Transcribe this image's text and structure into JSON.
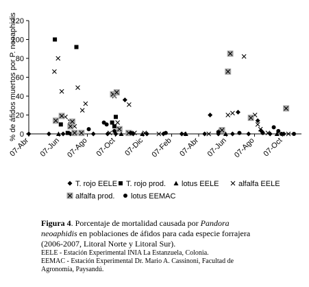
{
  "chart_data": {
    "type": "scatter",
    "ylabel": "% de áfidos muertos por P. neoaphidis",
    "ylim": [
      0,
      120
    ],
    "yticks": [
      0,
      20,
      40,
      60,
      80,
      100,
      120
    ],
    "xlim": [
      "2006-04-01",
      "2007-11-10"
    ],
    "xtick_labels": [
      {
        "date": "2006-04-01",
        "label": "07-Abr"
      },
      {
        "date": "2006-06-07",
        "label": "07-Jun"
      },
      {
        "date": "2006-08-07",
        "label": "07-Ago"
      },
      {
        "date": "2006-10-07",
        "label": "07-Oct"
      },
      {
        "date": "2006-12-07",
        "label": "07-Dic"
      },
      {
        "date": "2007-02-07",
        "label": "07-Feb"
      },
      {
        "date": "2007-04-07",
        "label": "07-Abr"
      },
      {
        "date": "2007-06-07",
        "label": "07-Jun"
      },
      {
        "date": "2007-08-07",
        "label": "07-Ago"
      },
      {
        "date": "2007-10-07",
        "label": "07-Oct"
      }
    ],
    "grid": false,
    "legend_placement": "bottom",
    "series": [
      {
        "name": "T. rojo EELE",
        "marker": "diamond",
        "color": "#000000",
        "points": [
          [
            "2006-04-01",
            0
          ],
          [
            "2006-05-15",
            0
          ],
          [
            "2006-06-15",
            0
          ],
          [
            "2006-07-01",
            0
          ],
          [
            "2006-08-20",
            0
          ],
          [
            "2006-09-20",
            0
          ],
          [
            "2006-10-08",
            0
          ],
          [
            "2006-10-28",
            36
          ],
          [
            "2006-11-15",
            0
          ],
          [
            "2006-12-15",
            0
          ],
          [
            "2007-01-20",
            0
          ],
          [
            "2007-03-01",
            0
          ],
          [
            "2007-04-20",
            0
          ],
          [
            "2007-05-02",
            20
          ],
          [
            "2007-05-20",
            0
          ],
          [
            "2007-06-20",
            0
          ],
          [
            "2007-07-02",
            23
          ],
          [
            "2007-07-25",
            0
          ],
          [
            "2007-08-14",
            14
          ],
          [
            "2007-08-22",
            3
          ],
          [
            "2007-09-10",
            0
          ],
          [
            "2007-10-10",
            0
          ]
        ]
      },
      {
        "name": "T. rojo prod.",
        "marker": "square",
        "color": "#000000",
        "points": [
          [
            "2006-05-28",
            100
          ],
          [
            "2006-06-10",
            10
          ],
          [
            "2006-06-25",
            1
          ],
          [
            "2006-07-14",
            92
          ],
          [
            "2006-09-30",
            12
          ],
          [
            "2006-10-05",
            8
          ],
          [
            "2006-10-08",
            18
          ]
        ]
      },
      {
        "name": "lotus EELE",
        "marker": "triangle",
        "color": "#000000",
        "points": [
          [
            "2006-06-05",
            0
          ],
          [
            "2006-07-25",
            0
          ],
          [
            "2006-10-20",
            0
          ],
          [
            "2006-12-05",
            0
          ],
          [
            "2007-03-10",
            0
          ],
          [
            "2007-06-05",
            0
          ],
          [
            "2007-09-25",
            0
          ]
        ]
      },
      {
        "name": "alfalfa EELE",
        "marker": "x",
        "color": "#000000",
        "points": [
          [
            "2006-05-27",
            66
          ],
          [
            "2006-06-04",
            80
          ],
          [
            "2006-06-12",
            45
          ],
          [
            "2006-06-20",
            18
          ],
          [
            "2006-06-30",
            13
          ],
          [
            "2006-07-10",
            8
          ],
          [
            "2006-07-17",
            49
          ],
          [
            "2006-07-27",
            25
          ],
          [
            "2006-08-03",
            32
          ],
          [
            "2006-09-25",
            1
          ],
          [
            "2006-10-05",
            40
          ],
          [
            "2006-10-12",
            12
          ],
          [
            "2006-11-06",
            31
          ],
          [
            "2006-11-18",
            1
          ],
          [
            "2006-12-10",
            1
          ],
          [
            "2007-01-10",
            0
          ],
          [
            "2007-03-05",
            0
          ],
          [
            "2007-04-29",
            0
          ],
          [
            "2007-05-25",
            3
          ],
          [
            "2007-06-10",
            20
          ],
          [
            "2007-06-20",
            22
          ],
          [
            "2007-07-15",
            82
          ],
          [
            "2007-08-08",
            20
          ],
          [
            "2007-08-14",
            10
          ],
          [
            "2007-08-20",
            5
          ],
          [
            "2007-09-05",
            1
          ],
          [
            "2007-10-20",
            0
          ]
        ]
      },
      {
        "name": "alfalfa prod.",
        "marker": "xbox",
        "color": "#000000",
        "points": [
          [
            "2006-05-30",
            14
          ],
          [
            "2006-06-12",
            19
          ],
          [
            "2006-07-01",
            8
          ],
          [
            "2006-07-05",
            13
          ],
          [
            "2006-07-10",
            1
          ],
          [
            "2006-07-25",
            1
          ],
          [
            "2006-10-02",
            42
          ],
          [
            "2006-10-10",
            44
          ],
          [
            "2006-10-16",
            5
          ],
          [
            "2006-11-05",
            1
          ],
          [
            "2007-05-28",
            4
          ],
          [
            "2007-06-10",
            66
          ],
          [
            "2007-06-15",
            85
          ],
          [
            "2007-07-30",
            17
          ],
          [
            "2007-10-15",
            27
          ]
        ]
      },
      {
        "name": "lotus EEMAC",
        "marker": "circle",
        "color": "#000000",
        "points": [
          [
            "2006-08-10",
            5
          ],
          [
            "2006-09-12",
            12
          ],
          [
            "2006-09-18",
            10
          ],
          [
            "2006-10-05",
            3
          ],
          [
            "2006-11-10",
            1
          ],
          [
            "2007-01-25",
            1
          ],
          [
            "2007-05-20",
            2
          ],
          [
            "2007-07-05",
            1
          ],
          [
            "2007-08-25",
            1
          ],
          [
            "2007-09-18",
            7
          ],
          [
            "2007-09-28",
            3
          ],
          [
            "2007-10-05",
            0
          ],
          [
            "2007-11-01",
            0
          ]
        ]
      }
    ]
  },
  "caption": {
    "label": "Figura 4",
    "text_before": ". Porcentaje de mortalidad causada por ",
    "species": "Pandora neoaphidis",
    "text_after": " en poblaciones de áfidos para cada especie forrajera (2006-2007, Litoral Norte y Litoral Sur).",
    "note1": "EELE - Estación Experimental INIA La Estanzuela, Colonia.",
    "note2": "EEMAC - Estación Experimental Dr. Mario A. Cassinoni, Facultad de Agronomía, Paysandú."
  }
}
